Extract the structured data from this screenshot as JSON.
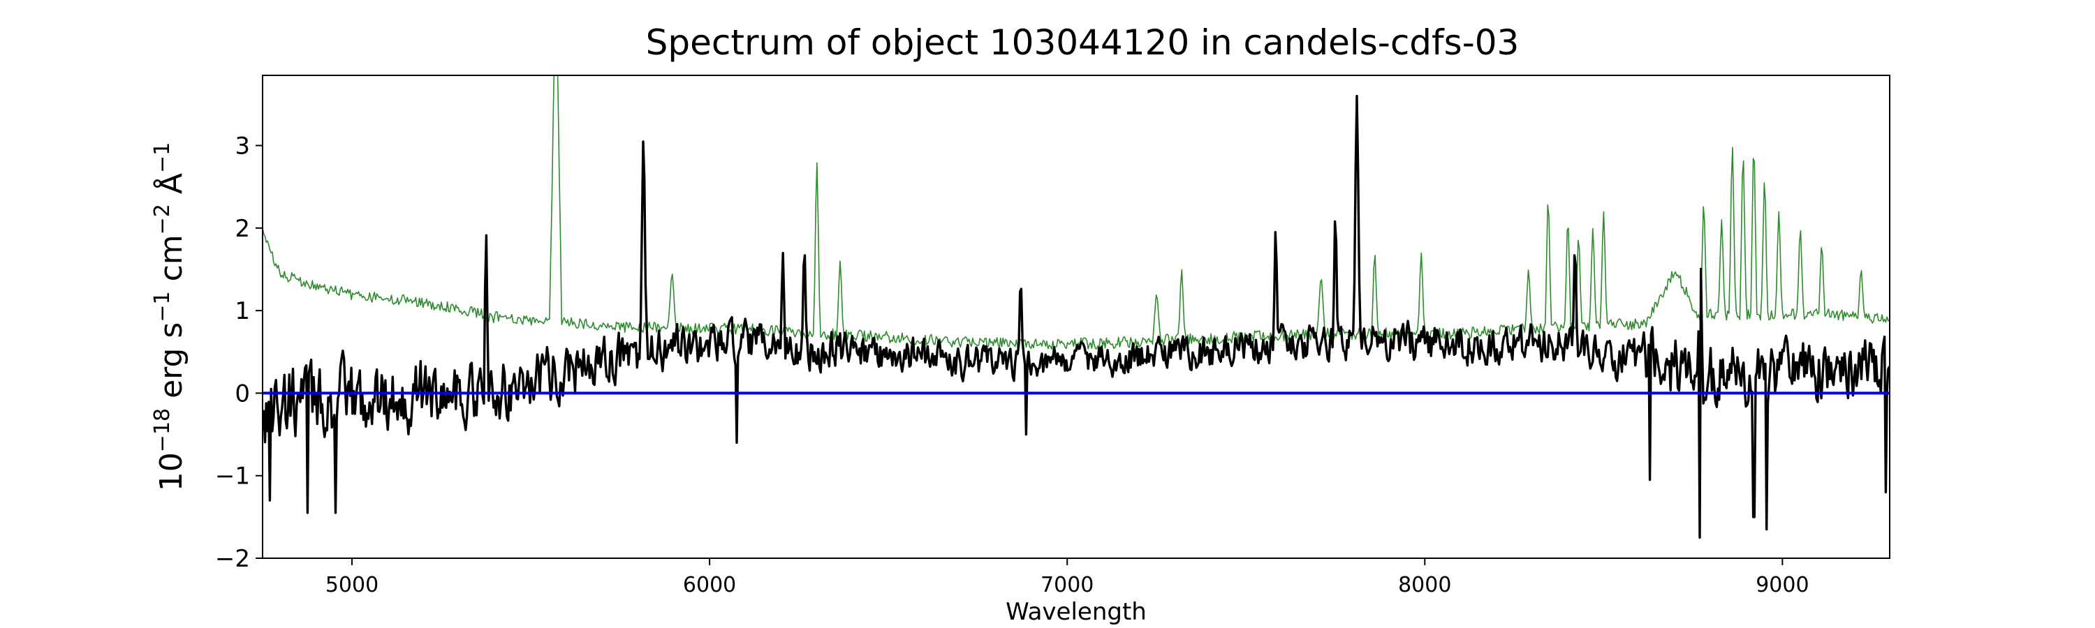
{
  "chart_data": {
    "type": "line",
    "title": "Spectrum of object 103044120 in candels-cdfs-03",
    "xlabel": "Wavelength",
    "ylabel": {
      "base": "10",
      "exp18": "−18",
      "erg": " erg s",
      "exp1": "−1",
      "cm": " cm",
      "exp2": "−2",
      "ang": " Å",
      "expA": "−1"
    },
    "xlim": [
      4750,
      9300
    ],
    "ylim": [
      -2,
      3.85
    ],
    "xticks": [
      5000,
      6000,
      7000,
      8000,
      9000
    ],
    "yticks": [
      -2,
      -1,
      0,
      1,
      2,
      3
    ],
    "grid": false,
    "series": [
      {
        "role": "error",
        "color": "#2e8b2e",
        "generator": "noise",
        "base_points": [
          [
            4750,
            1.95
          ],
          [
            4800,
            1.45
          ],
          [
            4900,
            1.28
          ],
          [
            5000,
            1.2
          ],
          [
            5200,
            1.1
          ],
          [
            5400,
            0.92
          ],
          [
            5550,
            0.88
          ],
          [
            5700,
            0.82
          ],
          [
            5900,
            0.78
          ],
          [
            6100,
            0.78
          ],
          [
            6300,
            0.72
          ],
          [
            6500,
            0.68
          ],
          [
            6700,
            0.62
          ],
          [
            6900,
            0.6
          ],
          [
            7100,
            0.6
          ],
          [
            7300,
            0.65
          ],
          [
            7500,
            0.68
          ],
          [
            7700,
            0.72
          ],
          [
            7900,
            0.72
          ],
          [
            8100,
            0.72
          ],
          [
            8300,
            0.78
          ],
          [
            8500,
            0.82
          ],
          [
            8620,
            0.85
          ],
          [
            8700,
            1.5
          ],
          [
            8760,
            0.95
          ],
          [
            9000,
            0.95
          ],
          [
            9150,
            0.95
          ],
          [
            9300,
            0.9
          ]
        ],
        "noise_amplitude": 0.07,
        "spikes": [
          {
            "x": 5570,
            "height": 4.6,
            "width": 8
          },
          {
            "x": 5895,
            "height": 1.45,
            "width": 5
          },
          {
            "x": 6300,
            "height": 2.8,
            "width": 4
          },
          {
            "x": 6365,
            "height": 1.6,
            "width": 4
          },
          {
            "x": 7250,
            "height": 1.2,
            "width": 5
          },
          {
            "x": 7320,
            "height": 1.5,
            "width": 4
          },
          {
            "x": 7710,
            "height": 1.4,
            "width": 5
          },
          {
            "x": 7860,
            "height": 1.7,
            "width": 4
          },
          {
            "x": 7990,
            "height": 1.7,
            "width": 4
          },
          {
            "x": 8290,
            "height": 1.5,
            "width": 4
          },
          {
            "x": 8345,
            "height": 2.35,
            "width": 4
          },
          {
            "x": 8400,
            "height": 2.1,
            "width": 4
          },
          {
            "x": 8430,
            "height": 1.9,
            "width": 4
          },
          {
            "x": 8470,
            "height": 2.0,
            "width": 4
          },
          {
            "x": 8500,
            "height": 2.2,
            "width": 4
          },
          {
            "x": 8780,
            "height": 2.3,
            "width": 4
          },
          {
            "x": 8830,
            "height": 2.1,
            "width": 4
          },
          {
            "x": 8860,
            "height": 3.0,
            "width": 4
          },
          {
            "x": 8890,
            "height": 2.9,
            "width": 4
          },
          {
            "x": 8920,
            "height": 3.0,
            "width": 4
          },
          {
            "x": 8950,
            "height": 2.6,
            "width": 4
          },
          {
            "x": 8990,
            "height": 2.2,
            "width": 4
          },
          {
            "x": 9050,
            "height": 2.0,
            "width": 4
          },
          {
            "x": 9110,
            "height": 1.8,
            "width": 4
          },
          {
            "x": 9220,
            "height": 1.5,
            "width": 4
          }
        ]
      },
      {
        "role": "flux",
        "color": "#000000",
        "generator": "noise",
        "base_points": [
          [
            4750,
            -0.2
          ],
          [
            4850,
            -0.1
          ],
          [
            5000,
            -0.1
          ],
          [
            5200,
            0.0
          ],
          [
            5400,
            0.0
          ],
          [
            5600,
            0.3
          ],
          [
            5800,
            0.45
          ],
          [
            6000,
            0.6
          ],
          [
            6200,
            0.55
          ],
          [
            6400,
            0.5
          ],
          [
            6600,
            0.45
          ],
          [
            6800,
            0.35
          ],
          [
            7000,
            0.4
          ],
          [
            7200,
            0.45
          ],
          [
            7400,
            0.5
          ],
          [
            7600,
            0.6
          ],
          [
            7800,
            0.65
          ],
          [
            8000,
            0.6
          ],
          [
            8200,
            0.6
          ],
          [
            8400,
            0.55
          ],
          [
            8600,
            0.4
          ],
          [
            8800,
            0.2
          ],
          [
            9000,
            0.25
          ],
          [
            9300,
            0.3
          ]
        ],
        "noise_amplitude_points": [
          [
            4750,
            0.75
          ],
          [
            5300,
            0.6
          ],
          [
            5600,
            0.5
          ],
          [
            6000,
            0.4
          ],
          [
            7000,
            0.3
          ],
          [
            8000,
            0.35
          ],
          [
            8500,
            0.4
          ],
          [
            8700,
            0.6
          ],
          [
            9300,
            0.55
          ]
        ],
        "spikes": [
          {
            "x": 5375,
            "height": 1.95,
            "width": 3
          },
          {
            "x": 5815,
            "height": 3.1,
            "width": 4
          },
          {
            "x": 6205,
            "height": 1.7,
            "width": 3
          },
          {
            "x": 6265,
            "height": 1.8,
            "width": 3
          },
          {
            "x": 6870,
            "height": 1.4,
            "width": 3
          },
          {
            "x": 7583,
            "height": 2.0,
            "width": 3
          },
          {
            "x": 7750,
            "height": 2.2,
            "width": 3
          },
          {
            "x": 7810,
            "height": 3.6,
            "width": 4
          },
          {
            "x": 8420,
            "height": 1.8,
            "width": 3
          },
          {
            "x": 8770,
            "height": 1.9,
            "width": 3
          }
        ],
        "dips": [
          {
            "x": 4770,
            "depth": -1.3
          },
          {
            "x": 4875,
            "depth": -1.45
          },
          {
            "x": 4955,
            "depth": -1.45
          },
          {
            "x": 6075,
            "depth": -0.6
          },
          {
            "x": 6885,
            "depth": -0.5
          },
          {
            "x": 8630,
            "depth": -1.05
          },
          {
            "x": 8770,
            "depth": -1.75
          },
          {
            "x": 8920,
            "depth": -1.5
          },
          {
            "x": 8955,
            "depth": -1.65
          },
          {
            "x": 9290,
            "depth": -1.2
          }
        ]
      },
      {
        "role": "zero",
        "color": "#0000e6",
        "y": 0
      }
    ]
  }
}
